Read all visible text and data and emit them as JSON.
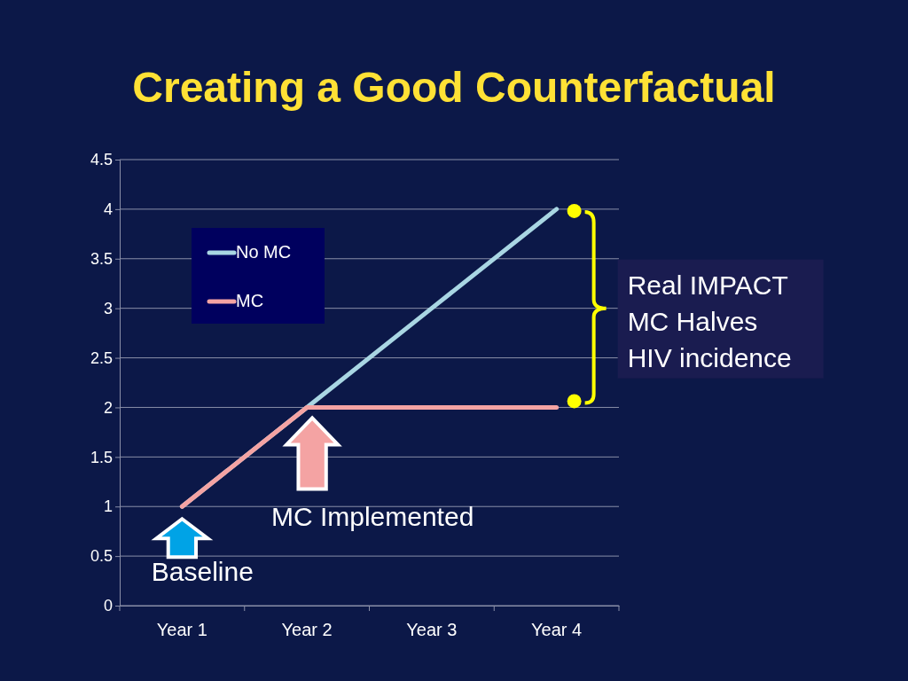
{
  "chart_data": {
    "type": "line",
    "title": "Creating a Good Counterfactual",
    "categories": [
      "Year 1",
      "Year 2",
      "Year 3",
      "Year 4"
    ],
    "series": [
      {
        "name": "No MC",
        "color": "#a9d6e3",
        "values": [
          1,
          2,
          3,
          4
        ]
      },
      {
        "name": "MC",
        "color": "#f4a3a3",
        "values": [
          1,
          2,
          2,
          2
        ]
      }
    ],
    "ylim": [
      0,
      4.5
    ],
    "yticks": [
      0,
      0.5,
      1,
      1.5,
      2,
      2.5,
      3,
      3.5,
      4,
      4.5
    ],
    "grid": "y",
    "legend": "top left",
    "annotations": [
      "Baseline",
      "MC Implemented",
      "Real IMPACT\nMC Halves\nHIV incidence"
    ]
  }
}
